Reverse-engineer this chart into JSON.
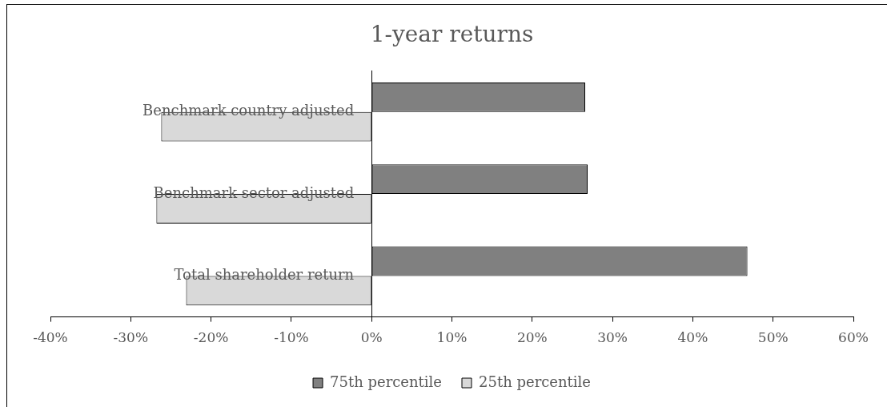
{
  "chart_data": {
    "type": "bar",
    "orientation": "horizontal",
    "title": "1-year returns",
    "categories": [
      "Benchmark country adjusted",
      "Benchmark sector adjusted",
      "Total shareholder return"
    ],
    "series": [
      {
        "name": "75th percentile",
        "color": "#808080",
        "values": [
          26.6,
          26.9,
          46.8
        ]
      },
      {
        "name": "25th percentile",
        "color": "#d9d9d9",
        "values": [
          -26.2,
          -26.8,
          -23.1
        ]
      }
    ],
    "xlim": [
      -40,
      60
    ],
    "xticks": [
      {
        "value": -40,
        "label": "-40%"
      },
      {
        "value": -30,
        "label": "-30%"
      },
      {
        "value": -20,
        "label": "-20%"
      },
      {
        "value": -10,
        "label": "-10%"
      },
      {
        "value": 0,
        "label": "0%"
      },
      {
        "value": 10,
        "label": "10%"
      },
      {
        "value": 20,
        "label": "20%"
      },
      {
        "value": 30,
        "label": "30%"
      },
      {
        "value": 40,
        "label": "40%"
      },
      {
        "value": 50,
        "label": "50%"
      },
      {
        "value": 60,
        "label": "60%"
      }
    ],
    "legend": "bottom"
  }
}
